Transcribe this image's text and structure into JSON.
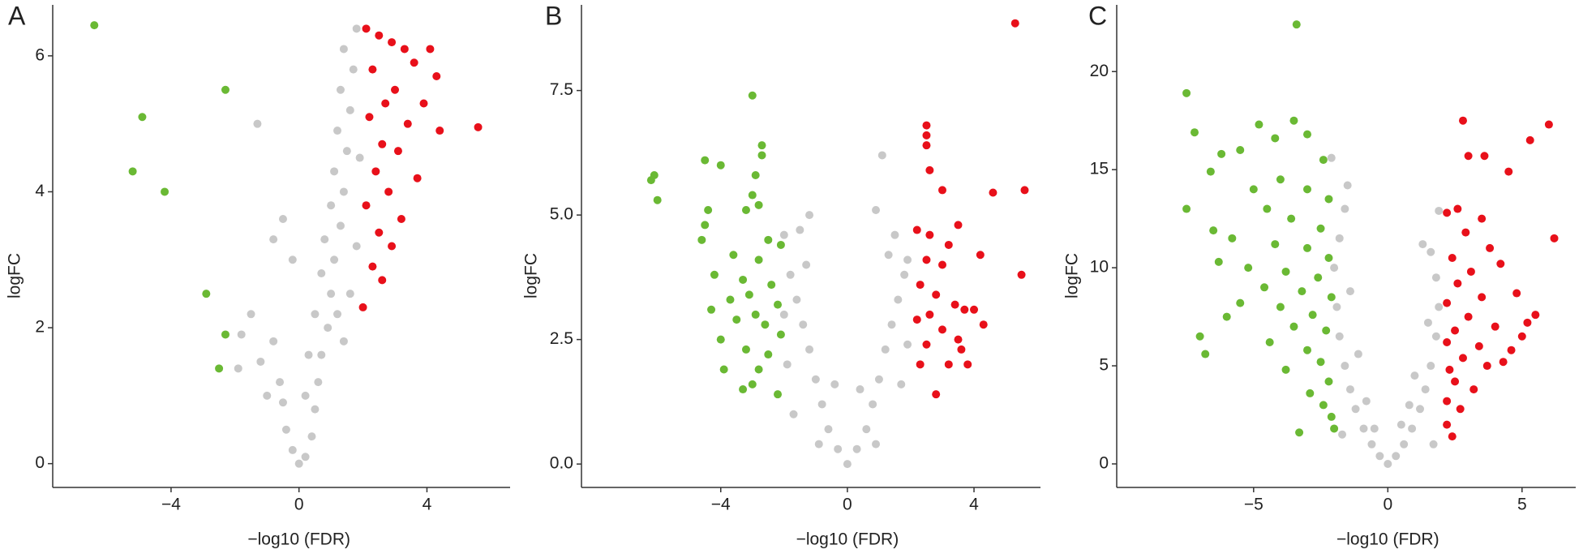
{
  "chart_data": [
    {
      "type": "scatter",
      "title": "A",
      "x_label": "−log10 (FDR)",
      "y_label": "logFC",
      "xlim": [
        -7.7,
        6.6
      ],
      "ylim": [
        -0.35,
        6.75
      ],
      "xticks": [
        {
          "value": -4,
          "label": "−4"
        },
        0,
        4
      ],
      "yticks": [
        0,
        2,
        4,
        6
      ],
      "series": [
        {
          "color": "#c8c8c8",
          "x": [
            0,
            0.2,
            -0.2,
            0.4,
            -0.4,
            0.5,
            -0.5,
            0.6,
            -0.6,
            0.7,
            0.3,
            -0.8,
            0.9,
            0.5,
            1.0,
            0.7,
            1.1,
            0.8,
            1.3,
            1.0,
            1.4,
            1.1,
            1.5,
            1.2,
            1.6,
            1.3,
            1.7,
            1.4,
            1.8,
            1.9,
            1.8,
            1.6,
            1.4,
            -1.3,
            -0.5,
            -0.8,
            -1.5,
            -1.8,
            -1.2,
            -1.9,
            -1.0,
            -0.2,
            0.2,
            1.2
          ],
          "values": [
            0,
            0.1,
            0.2,
            0.4,
            0.5,
            0.8,
            0.9,
            1.2,
            1.2,
            1.6,
            1.6,
            1.8,
            2.0,
            2.2,
            2.5,
            2.8,
            3.0,
            3.3,
            3.5,
            3.8,
            4.0,
            4.3,
            4.6,
            4.9,
            5.2,
            5.5,
            5.8,
            6.1,
            6.4,
            4.5,
            3.2,
            2.5,
            1.8,
            5.0,
            3.6,
            3.3,
            2.2,
            1.9,
            1.5,
            1.4,
            1.0,
            3.0,
            1.0,
            2.2
          ]
        },
        {
          "color": "#e8101a",
          "x": [
            2.1,
            2.5,
            2.9,
            3.3,
            4.1,
            3.6,
            2.3,
            4.3,
            3.0,
            2.7,
            3.9,
            2.2,
            3.4,
            4.4,
            5.6,
            2.6,
            3.1,
            2.4,
            3.7,
            2.8,
            2.1,
            3.2,
            2.5,
            2.9,
            2.3,
            2.6,
            2.0
          ],
          "values": [
            6.4,
            6.3,
            6.2,
            6.1,
            6.1,
            5.9,
            5.8,
            5.7,
            5.5,
            5.3,
            5.3,
            5.1,
            5.0,
            4.9,
            4.95,
            4.7,
            4.6,
            4.3,
            4.2,
            4.0,
            3.8,
            3.6,
            3.4,
            3.2,
            2.9,
            2.7,
            2.3
          ]
        },
        {
          "color": "#6ab934",
          "x": [
            -6.4,
            -2.3,
            -4.9,
            -5.2,
            -4.2,
            -2.9,
            -2.3,
            -2.5
          ],
          "values": [
            6.45,
            5.5,
            5.1,
            4.3,
            4.0,
            2.5,
            1.9,
            1.4
          ]
        }
      ]
    },
    {
      "type": "scatter",
      "title": "B",
      "x_label": "−log10 (FDR)",
      "y_label": "logFC",
      "xlim": [
        -8.4,
        6.1
      ],
      "ylim": [
        -0.47,
        9.22
      ],
      "xticks": [
        {
          "value": -4,
          "label": "−4"
        },
        0,
        4
      ],
      "yticks": [
        {
          "value": 0,
          "label": "0.0"
        },
        2.5,
        {
          "value": 5,
          "label": "5.0"
        },
        7.5
      ],
      "series": [
        {
          "color": "#c8c8c8",
          "x": [
            0,
            0.3,
            -0.3,
            0.6,
            -0.6,
            0.8,
            -0.8,
            1.0,
            -1.0,
            1.2,
            -1.2,
            1.4,
            -1.4,
            1.6,
            -1.6,
            1.8,
            -1.8,
            1.3,
            -1.3,
            1.5,
            -1.5,
            1.1,
            -1.2,
            0.9,
            -2.0,
            1.9,
            -1.9,
            0.4,
            -0.4,
            1.7,
            -1.7,
            -0.9,
            0.9,
            1.9,
            -2.0
          ],
          "values": [
            0,
            0.3,
            0.3,
            0.7,
            0.7,
            1.2,
            1.2,
            1.7,
            1.7,
            2.3,
            2.3,
            2.8,
            2.8,
            3.3,
            3.3,
            3.8,
            3.8,
            4.2,
            4.0,
            4.6,
            4.7,
            6.2,
            5.0,
            5.1,
            4.6,
            2.4,
            2.0,
            1.5,
            1.6,
            1.6,
            1.0,
            0.4,
            0.4,
            4.1,
            3.0
          ]
        },
        {
          "color": "#e8101a",
          "x": [
            5.3,
            2.5,
            2.5,
            2.5,
            2.6,
            3.0,
            4.6,
            5.6,
            3.5,
            2.2,
            2.6,
            3.2,
            4.2,
            2.5,
            3.0,
            5.5,
            2.3,
            2.8,
            3.4,
            2.6,
            3.7,
            4.0,
            2.2,
            3.0,
            4.3,
            2.5,
            3.5,
            2.3,
            3.2,
            3.8,
            2.8,
            3.6
          ],
          "values": [
            8.85,
            6.8,
            6.6,
            6.4,
            5.9,
            5.5,
            5.45,
            5.5,
            4.8,
            4.7,
            4.6,
            4.4,
            4.2,
            4.1,
            4.0,
            3.8,
            3.6,
            3.4,
            3.2,
            3.0,
            3.1,
            3.1,
            2.9,
            2.7,
            2.8,
            2.4,
            2.5,
            2.0,
            2.0,
            2.0,
            1.4,
            2.3
          ]
        },
        {
          "color": "#6ab934",
          "x": [
            -3.0,
            -2.7,
            -2.7,
            -6.1,
            -6.2,
            -4.5,
            -4.0,
            -2.9,
            -6.0,
            -4.4,
            -3.0,
            -2.8,
            -3.2,
            -4.5,
            -4.6,
            -2.5,
            -2.1,
            -3.6,
            -2.8,
            -4.2,
            -3.3,
            -2.4,
            -3.1,
            -3.7,
            -2.2,
            -4.3,
            -2.9,
            -3.5,
            -2.6,
            -2.1,
            -4.0,
            -3.2,
            -2.5,
            -3.9,
            -2.8,
            -3.3,
            -2.2,
            -3.0
          ],
          "values": [
            7.4,
            6.4,
            6.2,
            5.8,
            5.7,
            6.1,
            6.0,
            5.8,
            5.3,
            5.1,
            5.4,
            5.2,
            5.1,
            4.8,
            4.5,
            4.5,
            4.4,
            4.2,
            4.1,
            3.8,
            3.7,
            3.6,
            3.4,
            3.3,
            3.2,
            3.1,
            3.0,
            2.9,
            2.8,
            2.6,
            2.5,
            2.3,
            2.2,
            1.9,
            1.9,
            1.5,
            1.4,
            1.6
          ]
        }
      ]
    },
    {
      "type": "scatter",
      "title": "C",
      "x_label": "−log10 (FDR)",
      "y_label": "logFC",
      "xlim": [
        -10.1,
        7.0
      ],
      "ylim": [
        -1.2,
        23.4
      ],
      "xticks": [
        {
          "value": -5,
          "label": "−5"
        },
        0,
        5
      ],
      "yticks": [
        0,
        5,
        10,
        15,
        20
      ],
      "series": [
        {
          "color": "#c8c8c8",
          "x": [
            0,
            0.3,
            -0.3,
            0.6,
            -0.6,
            0.9,
            -0.9,
            1.2,
            -1.2,
            1.4,
            -1.4,
            1.6,
            -1.6,
            1.8,
            -1.8,
            1.9,
            -1.9,
            1.8,
            -2.0,
            1.6,
            -1.8,
            1.3,
            -1.6,
            1.9,
            -2.1,
            -1.5,
            0.8,
            -0.8,
            1.0,
            -1.1,
            0.5,
            -0.5,
            1.5,
            -1.4,
            1.7,
            -1.7
          ],
          "values": [
            0,
            0.4,
            0.4,
            1.0,
            1.0,
            1.8,
            1.8,
            2.8,
            2.8,
            3.8,
            3.8,
            5.0,
            5.0,
            6.5,
            6.5,
            8.0,
            8.0,
            9.5,
            10.0,
            10.8,
            11.5,
            11.2,
            13.0,
            12.9,
            15.6,
            14.2,
            3.0,
            3.2,
            4.5,
            5.6,
            2.0,
            1.8,
            7.2,
            8.8,
            1.0,
            1.5
          ]
        },
        {
          "color": "#e8101a",
          "x": [
            6.0,
            5.3,
            2.8,
            3.0,
            3.6,
            4.5,
            6.2,
            2.6,
            3.5,
            2.2,
            2.9,
            3.8,
            2.4,
            4.2,
            3.1,
            2.6,
            4.8,
            3.5,
            2.2,
            5.5,
            5.2,
            3.0,
            4.0,
            2.5,
            2.2,
            3.4,
            4.6,
            2.8,
            2.3,
            3.7,
            2.5,
            3.2,
            2.2,
            2.7,
            2.2,
            2.4,
            5.0,
            4.3
          ],
          "values": [
            17.3,
            16.5,
            17.5,
            15.7,
            15.7,
            14.9,
            11.5,
            13.0,
            12.5,
            12.8,
            11.8,
            11.0,
            10.5,
            10.2,
            9.8,
            9.2,
            8.7,
            8.5,
            8.2,
            7.6,
            7.2,
            7.5,
            7.0,
            6.8,
            6.2,
            6.0,
            5.8,
            5.4,
            4.8,
            5.0,
            4.2,
            3.8,
            3.2,
            2.8,
            2.0,
            1.4,
            6.5,
            5.2
          ]
        },
        {
          "color": "#6ab934",
          "x": [
            -3.4,
            -7.5,
            -7.2,
            -3.5,
            -4.8,
            -4.2,
            -3.0,
            -6.2,
            -5.5,
            -7.5,
            -2.4,
            -6.6,
            -4.0,
            -5.0,
            -3.0,
            -2.2,
            -6.5,
            -4.5,
            -3.6,
            -2.5,
            -5.8,
            -4.2,
            -3.0,
            -2.2,
            -6.3,
            -5.2,
            -3.8,
            -2.6,
            -4.6,
            -3.2,
            -2.1,
            -5.5,
            -4.0,
            -2.8,
            -6.0,
            -3.5,
            -2.3,
            -7.0,
            -4.4,
            -3.0,
            -6.8,
            -2.5,
            -3.8,
            -2.2,
            -2.9,
            -2.4,
            -2.1,
            -3.3,
            -2.0
          ],
          "values": [
            22.4,
            18.9,
            16.9,
            17.5,
            17.3,
            16.6,
            16.8,
            15.8,
            16.0,
            13.0,
            15.5,
            14.9,
            14.5,
            14.0,
            14.0,
            13.5,
            11.9,
            13.0,
            12.5,
            12.0,
            11.5,
            11.2,
            11.0,
            10.5,
            10.3,
            10.0,
            9.8,
            9.5,
            9.0,
            8.8,
            8.5,
            8.2,
            8.0,
            7.6,
            7.5,
            7.0,
            6.8,
            6.5,
            6.2,
            5.8,
            5.6,
            5.2,
            4.8,
            4.2,
            3.6,
            3.0,
            2.4,
            1.6,
            1.8
          ]
        }
      ]
    }
  ]
}
